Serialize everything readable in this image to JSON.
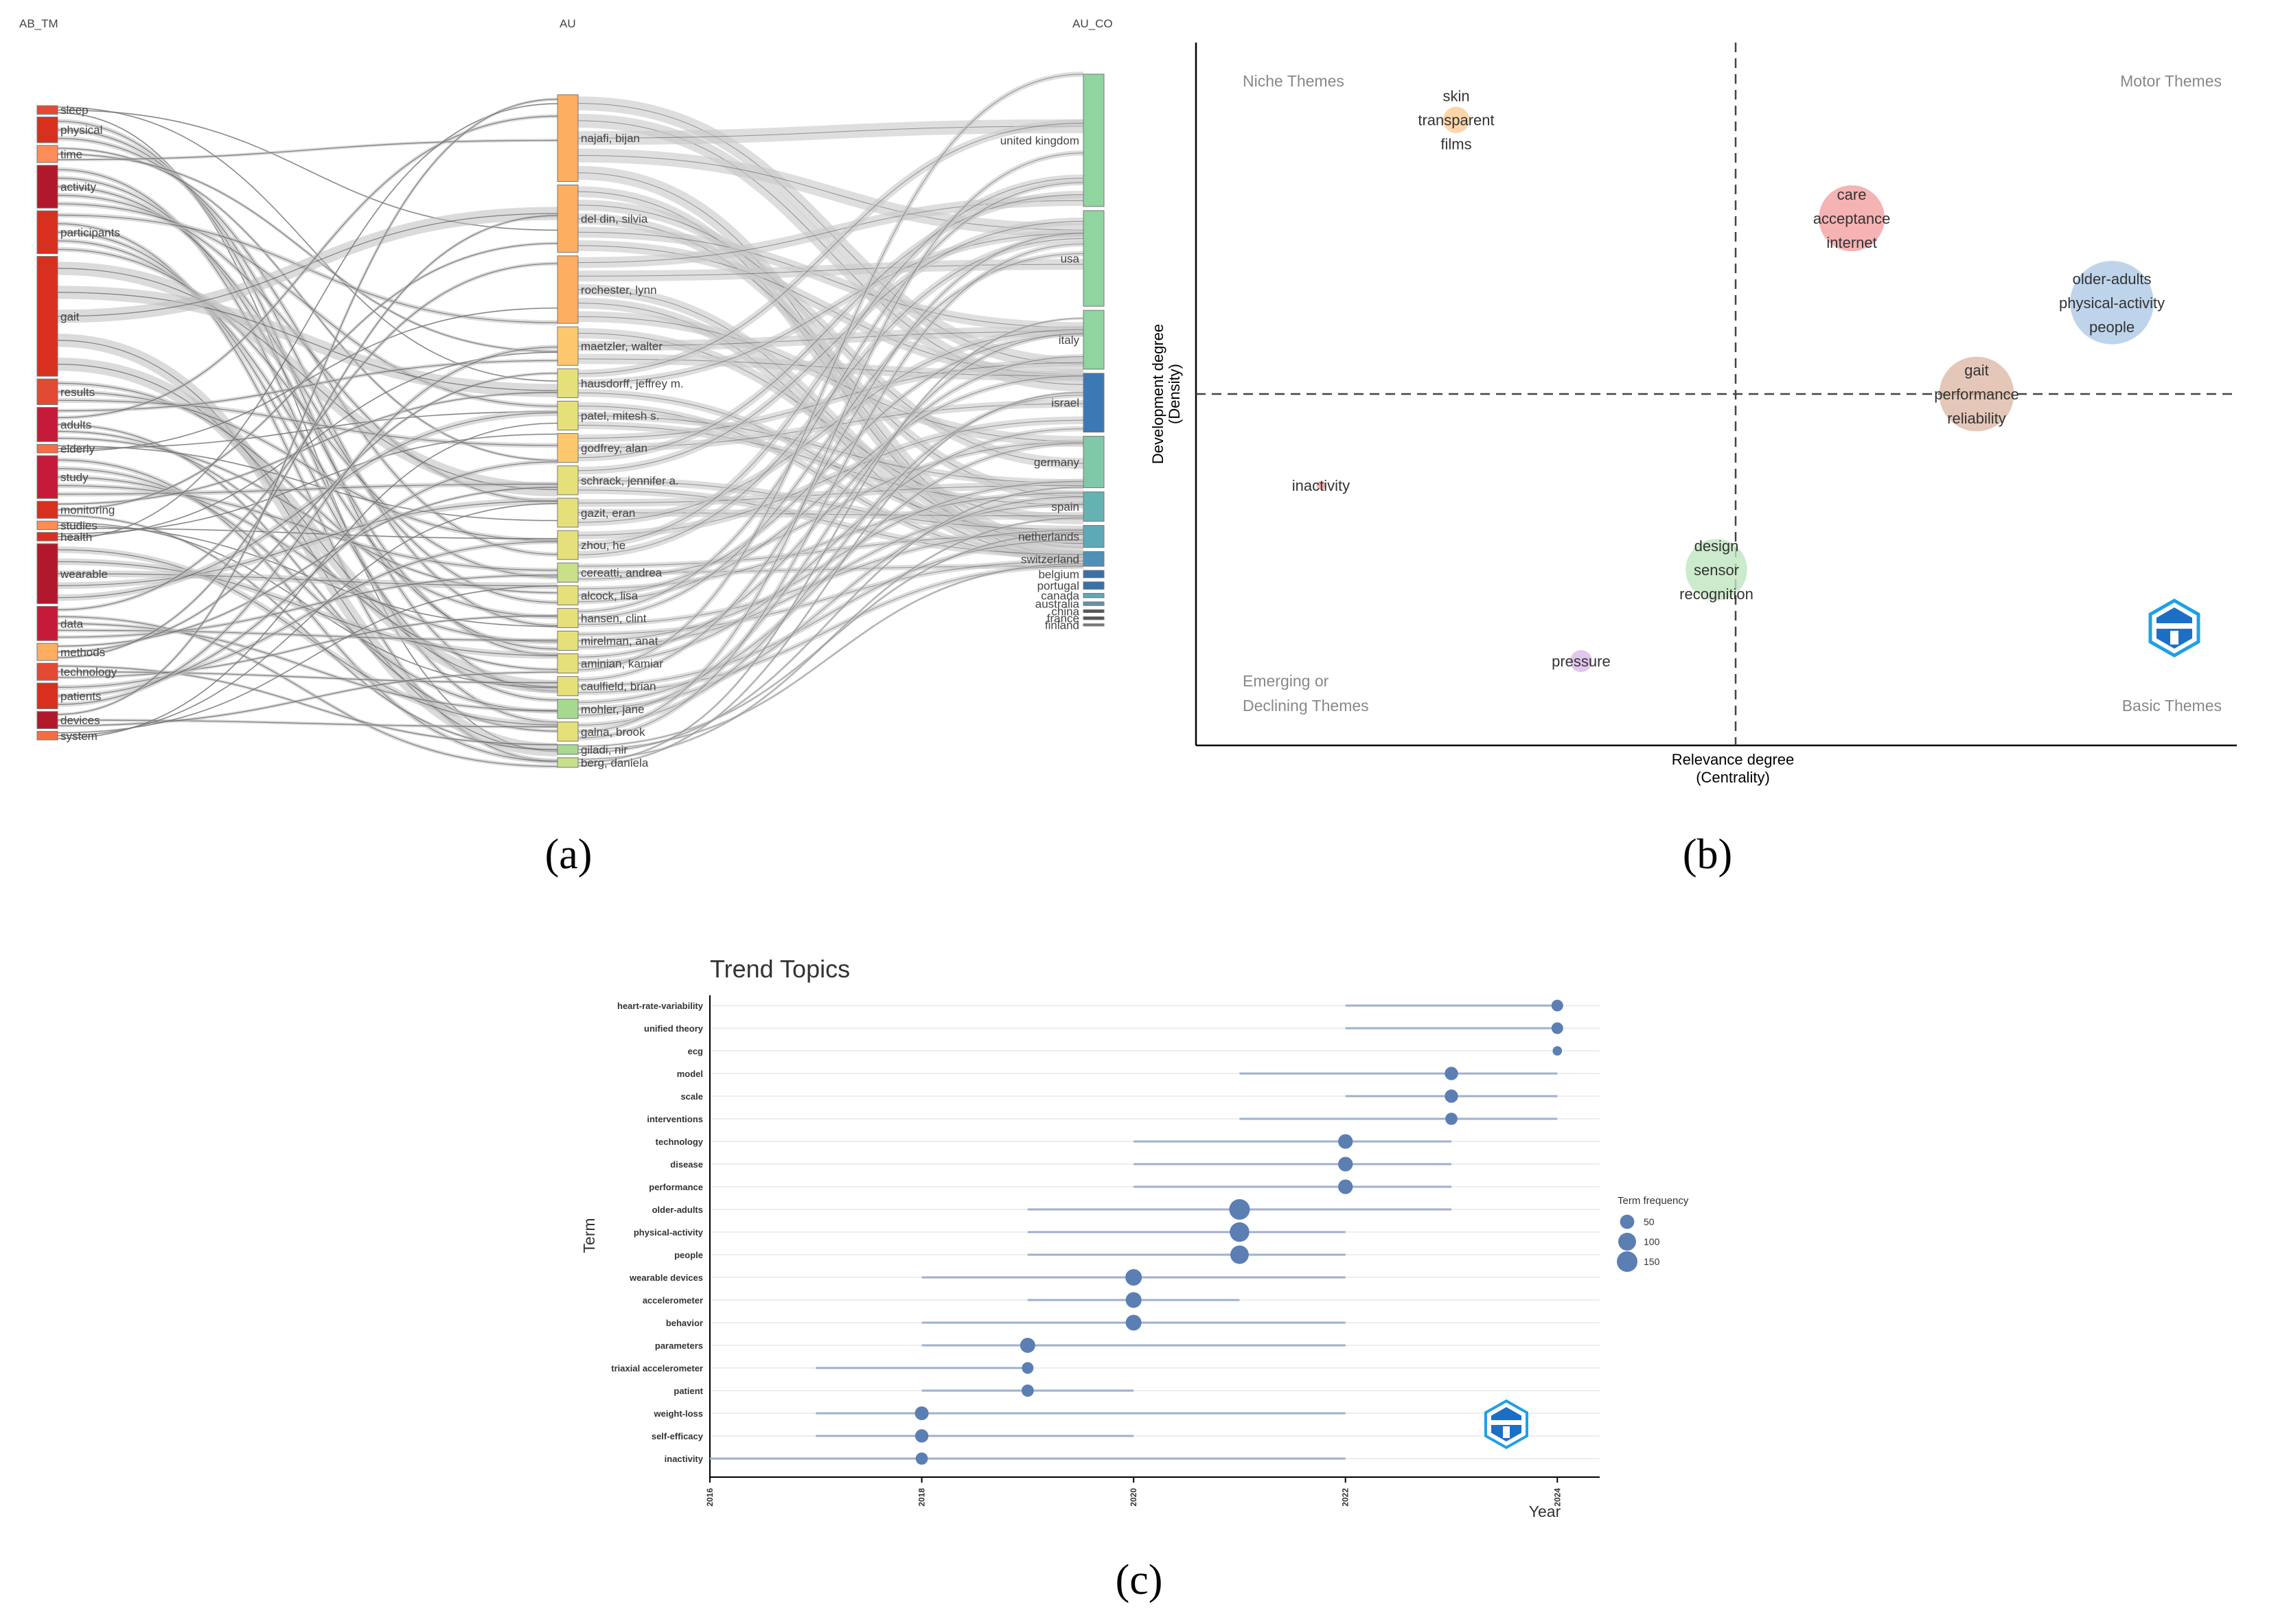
{
  "panels": {
    "a": "(a)",
    "b": "(b)",
    "c": "(c)"
  },
  "chart_data": [
    {
      "type": "sankey",
      "panel": "(a)",
      "columns": [
        "AB_TM",
        "AU",
        "AU_CO"
      ],
      "left": [
        "sleep",
        "physical",
        "time",
        "activity",
        "participants",
        "gait",
        "results",
        "adults",
        "elderly",
        "study",
        "monitoring",
        "studies",
        "health",
        "wearable",
        "data",
        "methods",
        "technology",
        "patients",
        "devices",
        "system"
      ],
      "left_weights": [
        1,
        3,
        2,
        5,
        5,
        14,
        3,
        4,
        1,
        5,
        2,
        1,
        1,
        7,
        4,
        2,
        2,
        3,
        2,
        1
      ],
      "left_colors": [
        "#e34a33",
        "#d7301f",
        "#fc8d59",
        "#b2182b",
        "#d7301f",
        "#d7301f",
        "#e34a33",
        "#c51b3a",
        "#f46d43",
        "#c51b3a",
        "#d7301f",
        "#fc8d59",
        "#d7301f",
        "#b2182b",
        "#c51b3a",
        "#fdae61",
        "#e34a33",
        "#d7301f",
        "#b2182b",
        "#f46d43"
      ],
      "middle": [
        "najafi, bijan",
        "del din, silvia",
        "rochester, lynn",
        "maetzler, walter",
        "hausdorff, jeffrey m.",
        "patel, mitesh s.",
        "godfrey, alan",
        "schrack, jennifer a.",
        "gazit, eran",
        "zhou, he",
        "cereatti, andrea",
        "alcock, lisa",
        "hansen, clint",
        "mirelman, anat",
        "aminian, kamiar",
        "caulfield, brian",
        "mohler, jane",
        "galna, brook",
        "giladi, nir",
        "berg, daniela"
      ],
      "middle_weights": [
        9,
        7,
        7,
        4,
        3,
        3,
        3,
        3,
        3,
        3,
        2,
        2,
        2,
        2,
        2,
        2,
        2,
        2,
        1,
        1
      ],
      "middle_colors": [
        "#fdae61",
        "#fdae61",
        "#fdae61",
        "#fdc86d",
        "#e6e07a",
        "#e6e07a",
        "#fdc86d",
        "#e6e07a",
        "#e6e07a",
        "#e6e07a",
        "#c8e08a",
        "#e6e07a",
        "#e6e07a",
        "#e6e07a",
        "#e6e07a",
        "#e6e07a",
        "#a6d98e",
        "#e6e07a",
        "#a6d98e",
        "#c8e08a"
      ],
      "right": [
        "united kingdom",
        "usa",
        "italy",
        "israel",
        "germany",
        "spain",
        "netherlands",
        "switzerland",
        "belgium",
        "portugal",
        "canada",
        "australia",
        "china",
        "france",
        "finland"
      ],
      "right_weights": [
        18,
        13,
        8,
        8,
        7,
        4,
        3,
        2,
        1,
        1,
        0.6,
        0.5,
        0.4,
        0.4,
        0.3
      ],
      "right_colors": [
        "#90d4a0",
        "#90d4a0",
        "#90d4a0",
        "#3b78b4",
        "#80c8a8",
        "#66b2b2",
        "#5fa8b8",
        "#5090b8",
        "#3b6fa8",
        "#3b6fa8",
        "#5fa8b8",
        "#6a8fa8",
        "#555555",
        "#555555",
        "#777777"
      ]
    },
    {
      "type": "scatter",
      "panel": "(b)",
      "title": "",
      "xlabel": "Relevance degree\n(Centrality)",
      "ylabel": "Development degree\n(Density)",
      "xlabel_lines": [
        "Relevance degree",
        "(Centrality)"
      ],
      "ylabel_lines": [
        "Development degree",
        "(Density)"
      ],
      "quadrants": {
        "top_left": "Niche Themes",
        "top_right": "Motor Themes",
        "bottom_left_1": "Emerging or",
        "bottom_left_2": "Declining Themes",
        "bottom_right": "Basic Themes"
      },
      "xlim": [
        0,
        100
      ],
      "ylim": [
        0,
        100
      ],
      "x_split": 50,
      "y_split": 50,
      "points": [
        {
          "labels": [
            "skin",
            "transparent",
            "films"
          ],
          "x": 25,
          "y": 89,
          "size": 12,
          "color": "#fdcb94"
        },
        {
          "labels": [
            "care",
            "acceptance",
            "internet"
          ],
          "x": 63,
          "y": 75,
          "size": 30,
          "color": "#f4a0a0"
        },
        {
          "labels": [
            "older-adults",
            "physical-activity",
            "people"
          ],
          "x": 88,
          "y": 63,
          "size": 38,
          "color": "#aec9e6"
        },
        {
          "labels": [
            "gait",
            "performance",
            "reliability"
          ],
          "x": 75,
          "y": 50,
          "size": 34,
          "color": "#ddb9a6"
        },
        {
          "labels": [
            "inactivity"
          ],
          "x": 12,
          "y": 37,
          "size": 4,
          "color": "#f4a0a0"
        },
        {
          "labels": [
            "design",
            "sensor",
            "recognition"
          ],
          "x": 50,
          "y": 25,
          "size": 28,
          "color": "#bfe5bf"
        },
        {
          "labels": [
            "pressure"
          ],
          "x": 37,
          "y": 12,
          "size": 10,
          "color": "#dbb8e8"
        }
      ]
    },
    {
      "type": "line",
      "panel": "(c)",
      "title": "Trend Topics",
      "xlabel": "Year",
      "ylabel": "Term",
      "xlim": [
        2016,
        2024.4
      ],
      "xticks": [
        "2016",
        "2018",
        "2020",
        "2022",
        "2024"
      ],
      "legend_title": "Term frequency",
      "legend_values": [
        "50",
        "100",
        "150"
      ],
      "terms": [
        "heart-rate-variability",
        "unified theory",
        "ecg",
        "model",
        "scale",
        "interventions",
        "technology",
        "disease",
        "performance",
        "older-adults",
        "physical-activity",
        "people",
        "wearable devices",
        "accelerometer",
        "behavior",
        "parameters",
        "triaxial accelerometer",
        "patient",
        "weight-loss",
        "self-efficacy",
        "inactivity"
      ],
      "q1": [
        2022,
        2022,
        2024,
        2021,
        2022,
        2021,
        2020,
        2020,
        2020,
        2019,
        2019,
        2019,
        2018,
        2019,
        2018,
        2018,
        2017,
        2018,
        2017,
        2017,
        2016
      ],
      "median": [
        2024,
        2024,
        2024,
        2023,
        2023,
        2023,
        2022,
        2022,
        2022,
        2021,
        2021,
        2021,
        2020,
        2020,
        2020,
        2019,
        2019,
        2019,
        2018,
        2018,
        2018
      ],
      "q3": [
        2024,
        2024,
        2024,
        2024,
        2024,
        2024,
        2023,
        2023,
        2023,
        2023,
        2022,
        2022,
        2022,
        2021,
        2022,
        2022,
        2019,
        2020,
        2022,
        2020,
        2022
      ],
      "freq": [
        25,
        25,
        10,
        40,
        40,
        30,
        55,
        55,
        55,
        150,
        130,
        110,
        80,
        70,
        70,
        60,
        25,
        30,
        45,
        40,
        30
      ]
    }
  ]
}
